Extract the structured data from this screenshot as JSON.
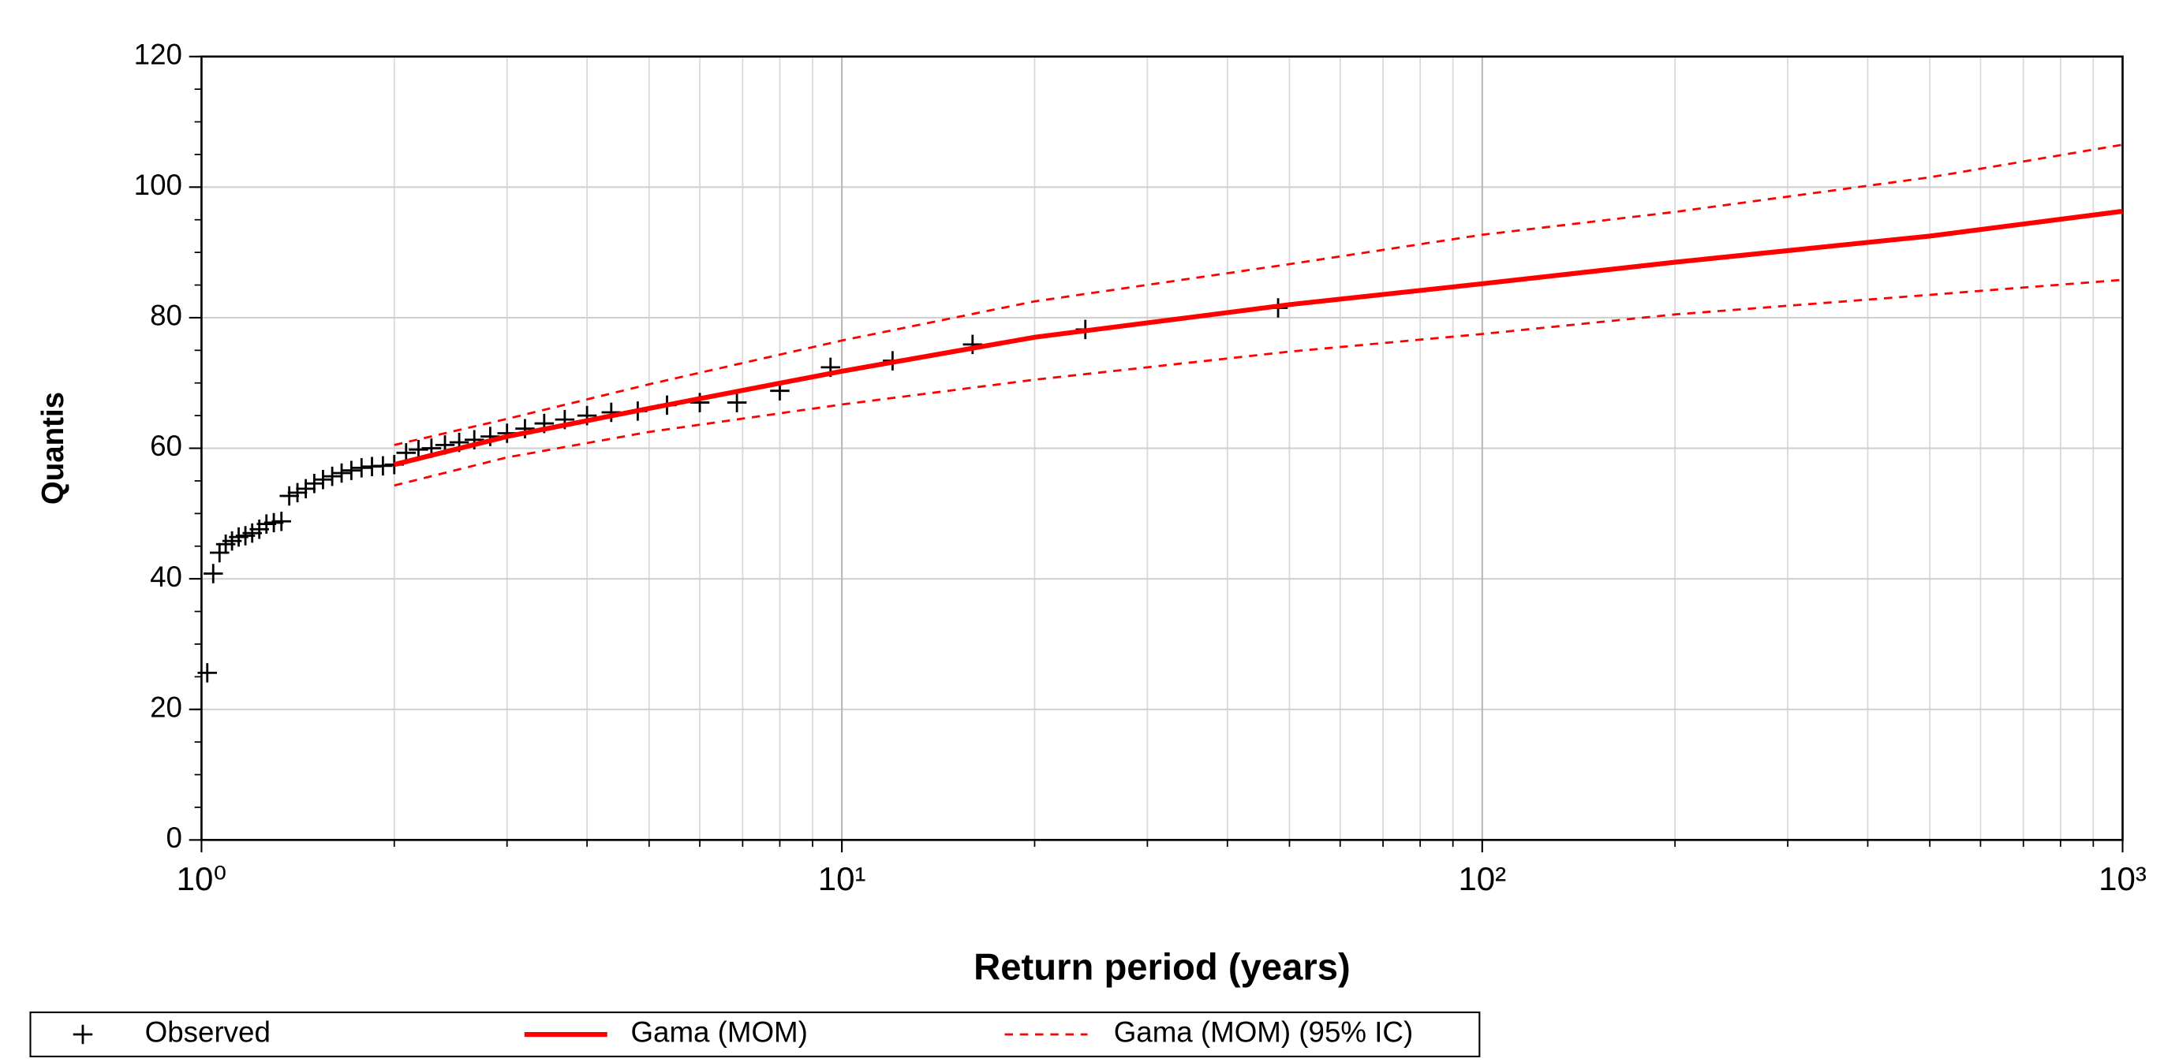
{
  "chart_data": {
    "type": "line",
    "y_label": "Quantis",
    "x_label": "Return period (years)",
    "log_x": true,
    "grid": true,
    "xlim": [
      1,
      1000
    ],
    "ylim": [
      0,
      120
    ],
    "xticks": [
      {
        "value": 1,
        "label": "10⁰"
      },
      {
        "value": 10,
        "label": "10¹"
      },
      {
        "value": 100,
        "label": "10²"
      },
      {
        "value": 1000,
        "label": "10³"
      }
    ],
    "yticks": [
      0,
      20,
      40,
      60,
      80,
      100,
      120
    ],
    "legend": "bottom",
    "series": [
      {
        "name": "Observed",
        "style": "plus",
        "color": "#000000",
        "x": [
          1.021,
          1.043,
          1.067,
          1.091,
          1.116,
          1.143,
          1.171,
          1.2,
          1.231,
          1.263,
          1.297,
          1.333,
          1.371,
          1.412,
          1.455,
          1.5,
          1.548,
          1.6,
          1.655,
          1.714,
          1.778,
          1.846,
          1.92,
          2,
          2.087,
          2.182,
          2.286,
          2.4,
          2.526,
          2.667,
          2.824,
          3,
          3.2,
          3.429,
          3.692,
          4,
          4.364,
          4.8,
          5.333,
          6,
          6.857,
          8,
          9.6,
          12,
          16,
          24,
          48
        ],
        "values": [
          25.6,
          40.8,
          44.0,
          45.3,
          45.8,
          46.4,
          46.6,
          47.0,
          47.6,
          48.4,
          48.6,
          48.8,
          52.7,
          53.2,
          53.8,
          54.6,
          55.2,
          55.7,
          56.2,
          56.6,
          57.0,
          57.2,
          57.3,
          57.5,
          59.3,
          59.8,
          60.0,
          60.5,
          60.9,
          61.3,
          61.8,
          62.3,
          63.0,
          63.8,
          64.4,
          65.0,
          65.5,
          65.7,
          66.6,
          67.0,
          67.0,
          68.8,
          72.4,
          73.4,
          75.9,
          78.2,
          81.5
        ]
      },
      {
        "name": "Gama (MOM)",
        "style": "solid",
        "color": "#ff0000",
        "x": [
          2,
          3,
          5,
          10,
          20,
          50,
          100,
          200,
          500,
          1000
        ],
        "values": [
          57.5,
          61.8,
          66.1,
          71.8,
          77.0,
          82.0,
          85.2,
          88.5,
          92.5,
          96.3
        ]
      },
      {
        "name": "Gama (MOM) (95% IC)",
        "style": "dashed",
        "color": "#ff0000",
        "x": [
          2,
          3,
          5,
          10,
          20,
          50,
          100,
          200,
          500,
          1000
        ],
        "upper": [
          60.5,
          64.5,
          69.8,
          76.5,
          82.5,
          88.2,
          92.7,
          96.2,
          101.5,
          106.5
        ],
        "lower": [
          54.3,
          58.6,
          62.5,
          66.7,
          70.5,
          74.8,
          77.5,
          80.5,
          83.5,
          85.8
        ]
      }
    ]
  }
}
